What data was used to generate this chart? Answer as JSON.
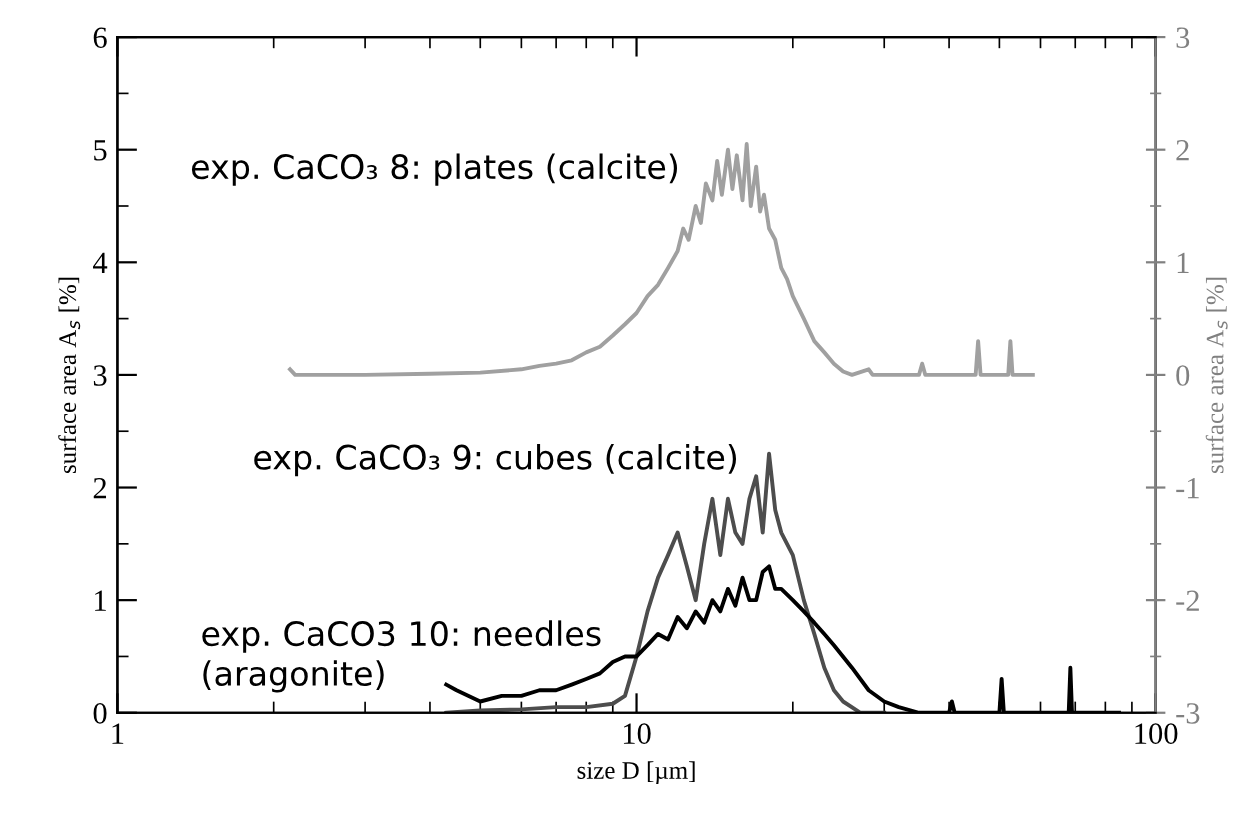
{
  "chart_data": {
    "type": "line",
    "xlabel": "size D [µm]",
    "ylabel": "surface area A$_{s}$ [%]",
    "y2label": "surface area A$_{s}$ [%]",
    "log": "x",
    "xlim": [
      1,
      100
    ],
    "xticks": [
      1,
      10,
      100
    ],
    "ylim": [
      0,
      6
    ],
    "yticks": [
      0,
      1,
      2,
      3,
      4,
      5,
      6
    ],
    "y2lim": [
      -3,
      3
    ],
    "y2ticks": [
      {
        "value": -3,
        "label": "-3"
      },
      {
        "value": -2,
        "label": "-2"
      },
      {
        "value": -1,
        "label": "-1"
      },
      0,
      1,
      2,
      3
    ],
    "grid": false,
    "legend": false,
    "marker": "none",
    "line_style": "solid",
    "series": [
      {
        "name": "exp. CaCO₃ 8: plates (calcite)",
        "color": "#a0a0a0",
        "axis": "y2",
        "x": [
          2.15,
          2.2,
          3,
          4,
          5,
          6,
          6.5,
          7,
          7.5,
          8,
          8.5,
          9,
          9.5,
          10,
          10.5,
          11,
          11.5,
          12,
          12.3,
          12.6,
          13,
          13.3,
          13.6,
          14,
          14.3,
          14.6,
          15,
          15.3,
          15.6,
          16,
          16.3,
          16.6,
          17,
          17.3,
          17.6,
          18,
          18.5,
          19,
          19.5,
          20,
          21,
          22,
          23,
          24,
          25,
          26,
          28,
          28.5,
          29,
          35,
          35.5,
          36,
          45,
          45.5,
          46,
          52,
          52.5,
          53,
          58
        ],
        "values": [
          0.05,
          0,
          0,
          0.01,
          0.02,
          0.05,
          0.08,
          0.1,
          0.13,
          0.2,
          0.25,
          0.35,
          0.45,
          0.55,
          0.7,
          0.8,
          0.95,
          1.1,
          1.3,
          1.2,
          1.5,
          1.35,
          1.7,
          1.55,
          1.9,
          1.6,
          2.0,
          1.65,
          1.95,
          1.55,
          2.05,
          1.5,
          1.85,
          1.45,
          1.6,
          1.3,
          1.2,
          0.95,
          0.85,
          0.7,
          0.5,
          0.3,
          0.2,
          0.1,
          0.03,
          0,
          0.05,
          0,
          0,
          0,
          0.1,
          0,
          0,
          0.3,
          0,
          0,
          0.3,
          0,
          0
        ]
      },
      {
        "name": "exp. CaCO₃ 9: cubes (calcite)",
        "color": "#4d4d4d",
        "x": [
          4.3,
          5,
          6,
          7,
          8,
          9,
          9.5,
          10,
          10.5,
          11,
          11.5,
          12,
          12.5,
          13,
          13.5,
          14,
          14.5,
          15,
          15.5,
          16,
          16.5,
          17,
          17.5,
          18,
          18.5,
          19,
          20,
          21,
          22,
          23,
          24,
          25,
          27,
          30
        ],
        "values": [
          0,
          0.02,
          0.03,
          0.05,
          0.05,
          0.08,
          0.15,
          0.5,
          0.9,
          1.2,
          1.4,
          1.6,
          1.3,
          1.0,
          1.5,
          1.9,
          1.4,
          1.9,
          1.6,
          1.5,
          1.9,
          2.1,
          1.6,
          2.3,
          1.8,
          1.6,
          1.4,
          1.0,
          0.7,
          0.4,
          0.2,
          0.1,
          0,
          0
        ]
      },
      {
        "name": "exp. CaCO3 10: needles\n(aragonite)",
        "color": "#000000",
        "x": [
          4.3,
          4.5,
          5,
          5.5,
          6,
          6.5,
          7,
          7.5,
          8,
          8.5,
          9,
          9.5,
          10,
          10.5,
          11,
          11.5,
          12,
          12.5,
          13,
          13.5,
          14,
          14.5,
          15,
          15.5,
          16,
          16.5,
          17,
          17.5,
          18,
          18.5,
          19,
          20,
          21,
          22,
          23,
          24,
          26,
          28,
          30,
          32,
          35,
          40,
          40.5,
          41,
          50,
          50.5,
          51,
          68,
          68.5,
          69,
          85
        ],
        "values": [
          0.25,
          0.2,
          0.1,
          0.15,
          0.15,
          0.2,
          0.2,
          0.25,
          0.3,
          0.35,
          0.45,
          0.5,
          0.5,
          0.6,
          0.7,
          0.65,
          0.85,
          0.75,
          0.9,
          0.8,
          1.0,
          0.9,
          1.1,
          0.95,
          1.2,
          1.0,
          1.0,
          1.25,
          1.3,
          1.1,
          1.1,
          1.0,
          0.9,
          0.8,
          0.7,
          0.6,
          0.4,
          0.2,
          0.1,
          0.05,
          0,
          0,
          0.1,
          0,
          0,
          0.3,
          0,
          0,
          0.4,
          0,
          0
        ]
      }
    ]
  }
}
